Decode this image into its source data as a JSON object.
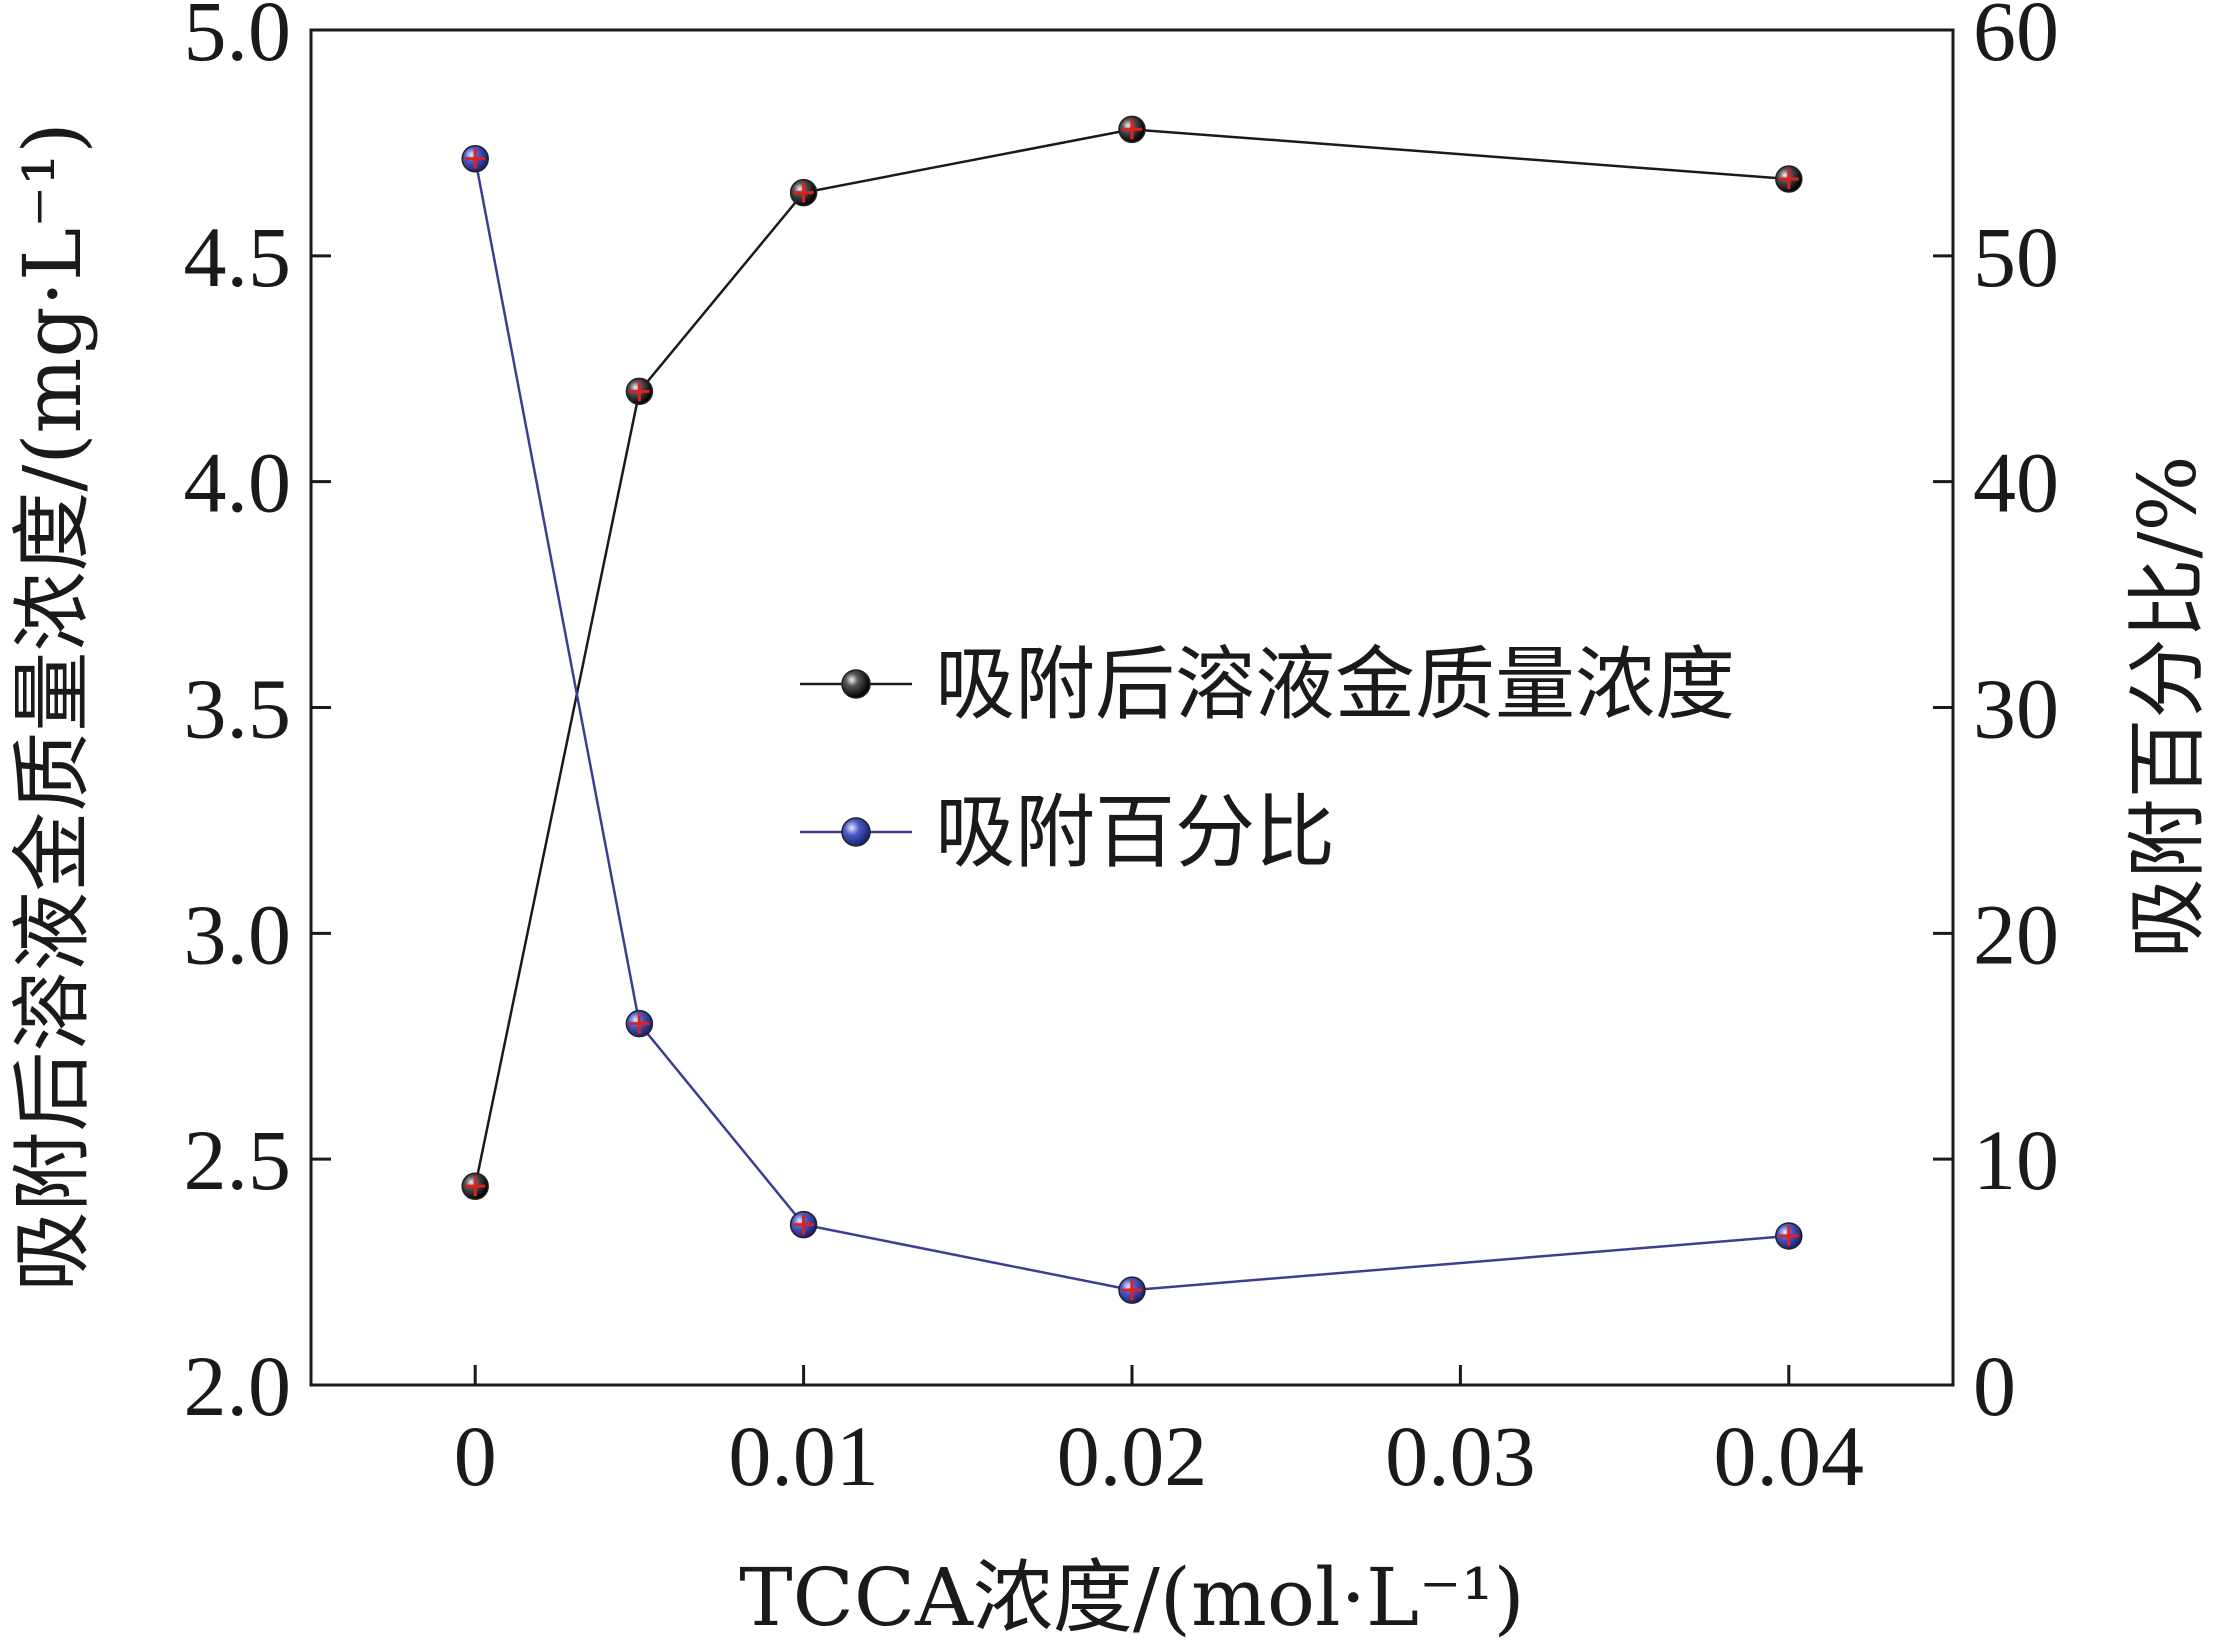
{
  "chart_data": {
    "type": "line",
    "xlabel": "TCCA浓度/(mol·L⁻¹)",
    "ylabel_left": "吸附后溶液金质量浓度/(mg·L⁻¹)",
    "ylabel_right": "吸附百分比/%",
    "x_ticks": [
      "0",
      "0.01",
      "0.02",
      "0.03",
      "0.04"
    ],
    "x_tick_values": [
      0,
      0.01,
      0.02,
      0.03,
      0.04
    ],
    "xlim": [
      -0.005,
      0.045
    ],
    "y_left_ticks": [
      "2.0",
      "2.5",
      "3.0",
      "3.5",
      "4.0",
      "4.5",
      "5.0"
    ],
    "y_left_tick_values": [
      2.0,
      2.5,
      3.0,
      3.5,
      4.0,
      4.5,
      5.0
    ],
    "ylim_left": [
      2.0,
      5.0
    ],
    "y_right_ticks": [
      "0",
      "10",
      "20",
      "30",
      "40",
      "50",
      "60"
    ],
    "y_right_tick_values": [
      0,
      10,
      20,
      30,
      40,
      50,
      60
    ],
    "ylim_right": [
      0,
      60
    ],
    "legend_position": "center-right",
    "series": [
      {
        "name": "吸附后溶液金质量浓度",
        "axis": "left",
        "color": "#1a1a1a",
        "marker_color": "#111111",
        "x": [
          0,
          0.005,
          0.01,
          0.02,
          0.04
        ],
        "y": [
          2.44,
          4.2,
          4.64,
          4.78,
          4.67
        ]
      },
      {
        "name": "吸附百分比",
        "axis": "right",
        "color": "#3a3f8f",
        "marker_color": "#3d4aa8",
        "x": [
          0,
          0.005,
          0.01,
          0.02,
          0.04
        ],
        "y": [
          54.3,
          16.0,
          7.1,
          4.2,
          6.6
        ]
      }
    ]
  }
}
